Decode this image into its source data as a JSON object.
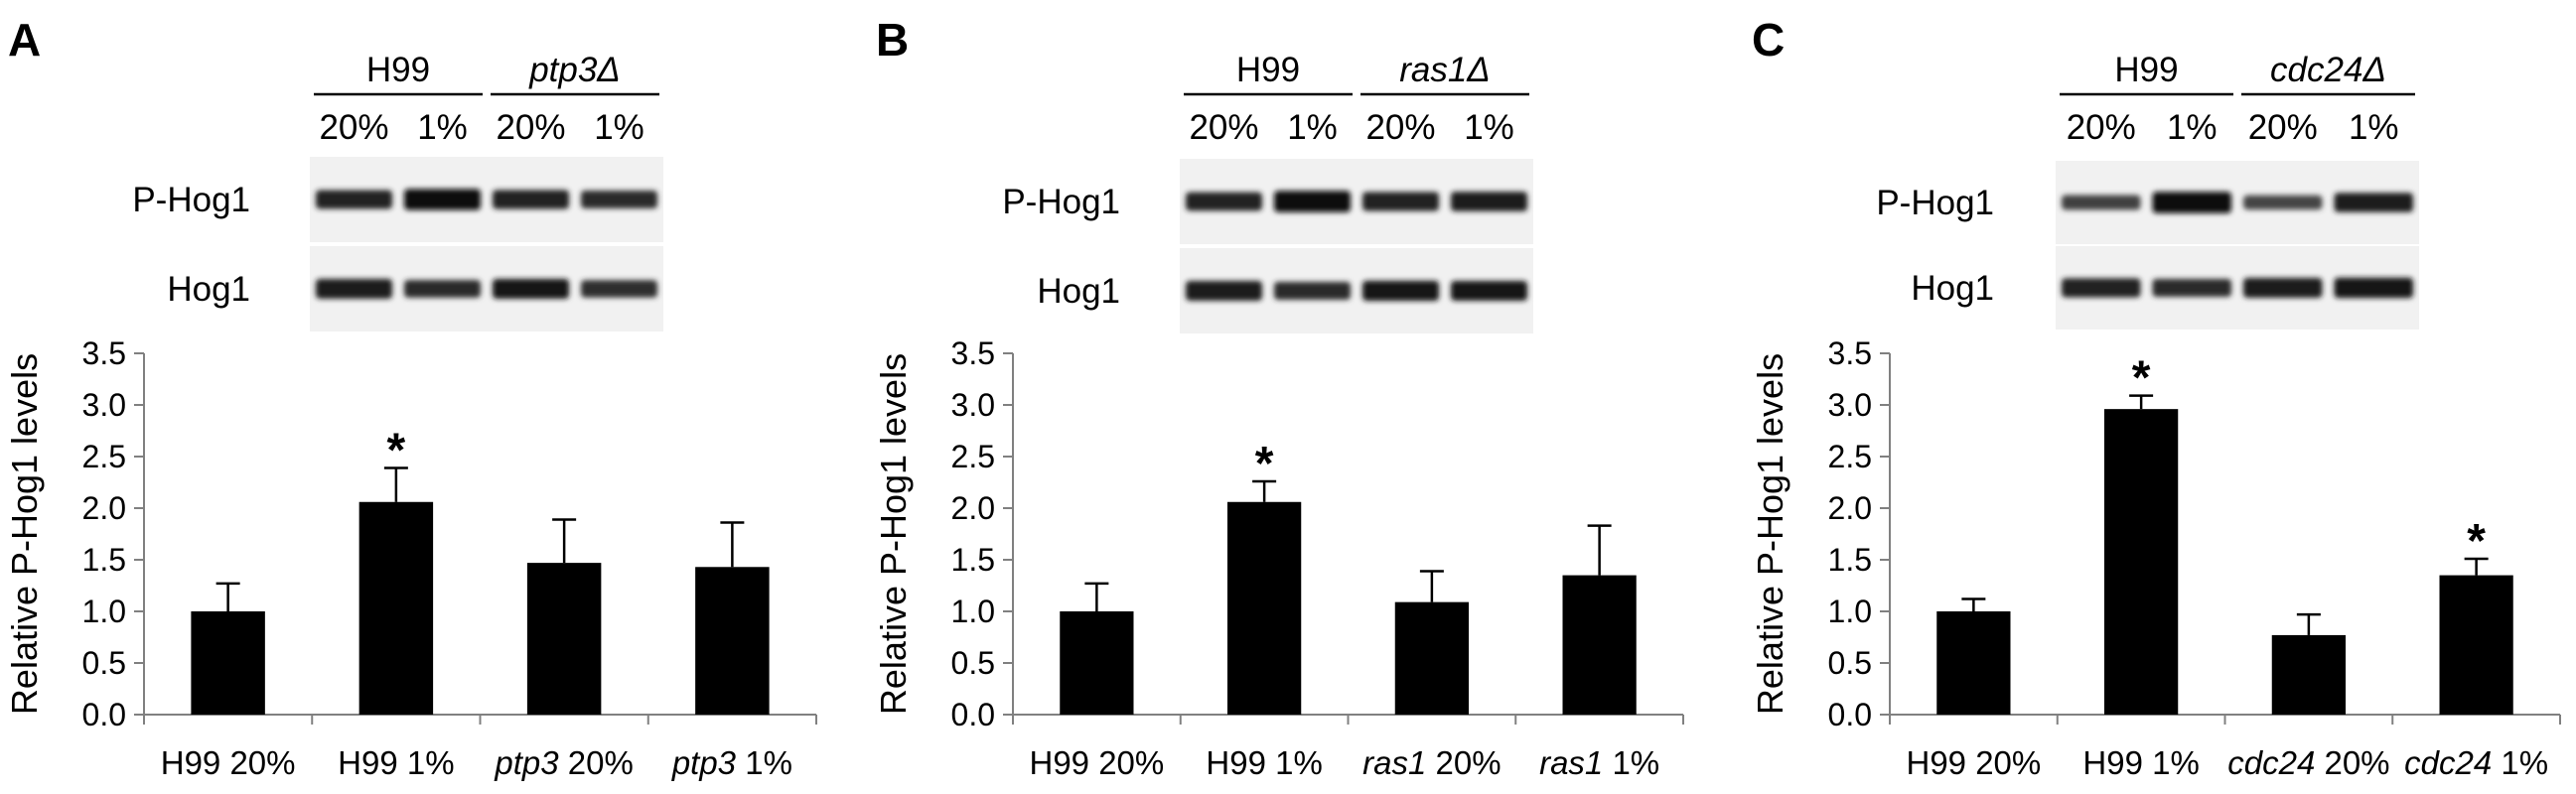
{
  "panels": [
    {
      "letter": "A",
      "strains": [
        "H99",
        "ptp3Δ"
      ],
      "conditions": [
        "20%",
        "1%",
        "20%",
        "1%"
      ],
      "blot_rows": [
        "P-Hog1",
        "Hog1"
      ],
      "blot_intensity": {
        "P-Hog1": [
          0.78,
          0.95,
          0.8,
          0.72
        ],
        "Hog1": [
          0.85,
          0.7,
          0.86,
          0.68
        ]
      },
      "chart_data": {
        "type": "bar",
        "categories": [
          [
            {
              "text": "H99",
              "italic": false
            },
            {
              "text": " 20%",
              "italic": false
            }
          ],
          [
            {
              "text": "H99",
              "italic": false
            },
            {
              "text": " 1%",
              "italic": false
            }
          ],
          [
            {
              "text": "ptp3",
              "italic": true
            },
            {
              "text": " 20%",
              "italic": false
            }
          ],
          [
            {
              "text": "ptp3",
              "italic": true
            },
            {
              "text": " 1%",
              "italic": false
            }
          ]
        ],
        "values": [
          1.0,
          2.06,
          1.47,
          1.43
        ],
        "errors": [
          0.27,
          0.33,
          0.42,
          0.43
        ],
        "significant": [
          false,
          true,
          false,
          false
        ],
        "annotation": "*",
        "ylabel": "Relative P-Hog1 levels",
        "ylim": [
          0,
          3.5
        ],
        "yticks": [
          "0.0",
          "0.5",
          "1.0",
          "1.5",
          "2.0",
          "2.5",
          "3.0",
          "3.5"
        ],
        "bar_color": "#000000"
      }
    },
    {
      "letter": "B",
      "strains": [
        "H99",
        "ras1Δ"
      ],
      "conditions": [
        "20%",
        "1%",
        "20%",
        "1%"
      ],
      "blot_rows": [
        "P-Hog1",
        "Hog1"
      ],
      "blot_intensity": {
        "P-Hog1": [
          0.76,
          0.97,
          0.8,
          0.84
        ],
        "Hog1": [
          0.85,
          0.72,
          0.88,
          0.86
        ]
      },
      "chart_data": {
        "type": "bar",
        "categories": [
          [
            {
              "text": "H99",
              "italic": false
            },
            {
              "text": " 20%",
              "italic": false
            }
          ],
          [
            {
              "text": "H99",
              "italic": false
            },
            {
              "text": " 1%",
              "italic": false
            }
          ],
          [
            {
              "text": "ras1",
              "italic": true
            },
            {
              "text": " 20%",
              "italic": false
            }
          ],
          [
            {
              "text": "ras1",
              "italic": true
            },
            {
              "text": " 1%",
              "italic": false
            }
          ]
        ],
        "values": [
          1.0,
          2.06,
          1.09,
          1.35
        ],
        "errors": [
          0.27,
          0.2,
          0.3,
          0.48
        ],
        "significant": [
          false,
          true,
          false,
          false
        ],
        "annotation": "*",
        "ylabel": "Relative P-Hog1 levels",
        "ylim": [
          0,
          3.5
        ],
        "yticks": [
          "0.0",
          "0.5",
          "1.0",
          "1.5",
          "2.0",
          "2.5",
          "3.0",
          "3.5"
        ],
        "bar_color": "#000000"
      }
    },
    {
      "letter": "C",
      "strains": [
        "H99",
        "cdc24Δ"
      ],
      "conditions": [
        "20%",
        "1%",
        "20%",
        "1%"
      ],
      "blot_rows": [
        "P-Hog1",
        "Hog1"
      ],
      "blot_intensity": {
        "P-Hog1": [
          0.5,
          0.97,
          0.46,
          0.82
        ],
        "Hog1": [
          0.8,
          0.72,
          0.85,
          0.9
        ]
      },
      "chart_data": {
        "type": "bar",
        "categories": [
          [
            {
              "text": "H99",
              "italic": false
            },
            {
              "text": " 20%",
              "italic": false
            }
          ],
          [
            {
              "text": "H99",
              "italic": false
            },
            {
              "text": " 1%",
              "italic": false
            }
          ],
          [
            {
              "text": "cdc24",
              "italic": true
            },
            {
              "text": " 20%",
              "italic": false
            }
          ],
          [
            {
              "text": "cdc24",
              "italic": true
            },
            {
              "text": " 1%",
              "italic": false
            }
          ]
        ],
        "values": [
          1.0,
          2.96,
          0.77,
          1.35
        ],
        "errors": [
          0.12,
          0.13,
          0.2,
          0.16
        ],
        "significant": [
          false,
          true,
          false,
          true
        ],
        "annotation": "*",
        "ylabel": "Relative P-Hog1 levels",
        "ylim": [
          0,
          3.5
        ],
        "yticks": [
          "0.0",
          "0.5",
          "1.0",
          "1.5",
          "2.0",
          "2.5",
          "3.0",
          "3.5"
        ],
        "bar_color": "#000000"
      }
    }
  ]
}
